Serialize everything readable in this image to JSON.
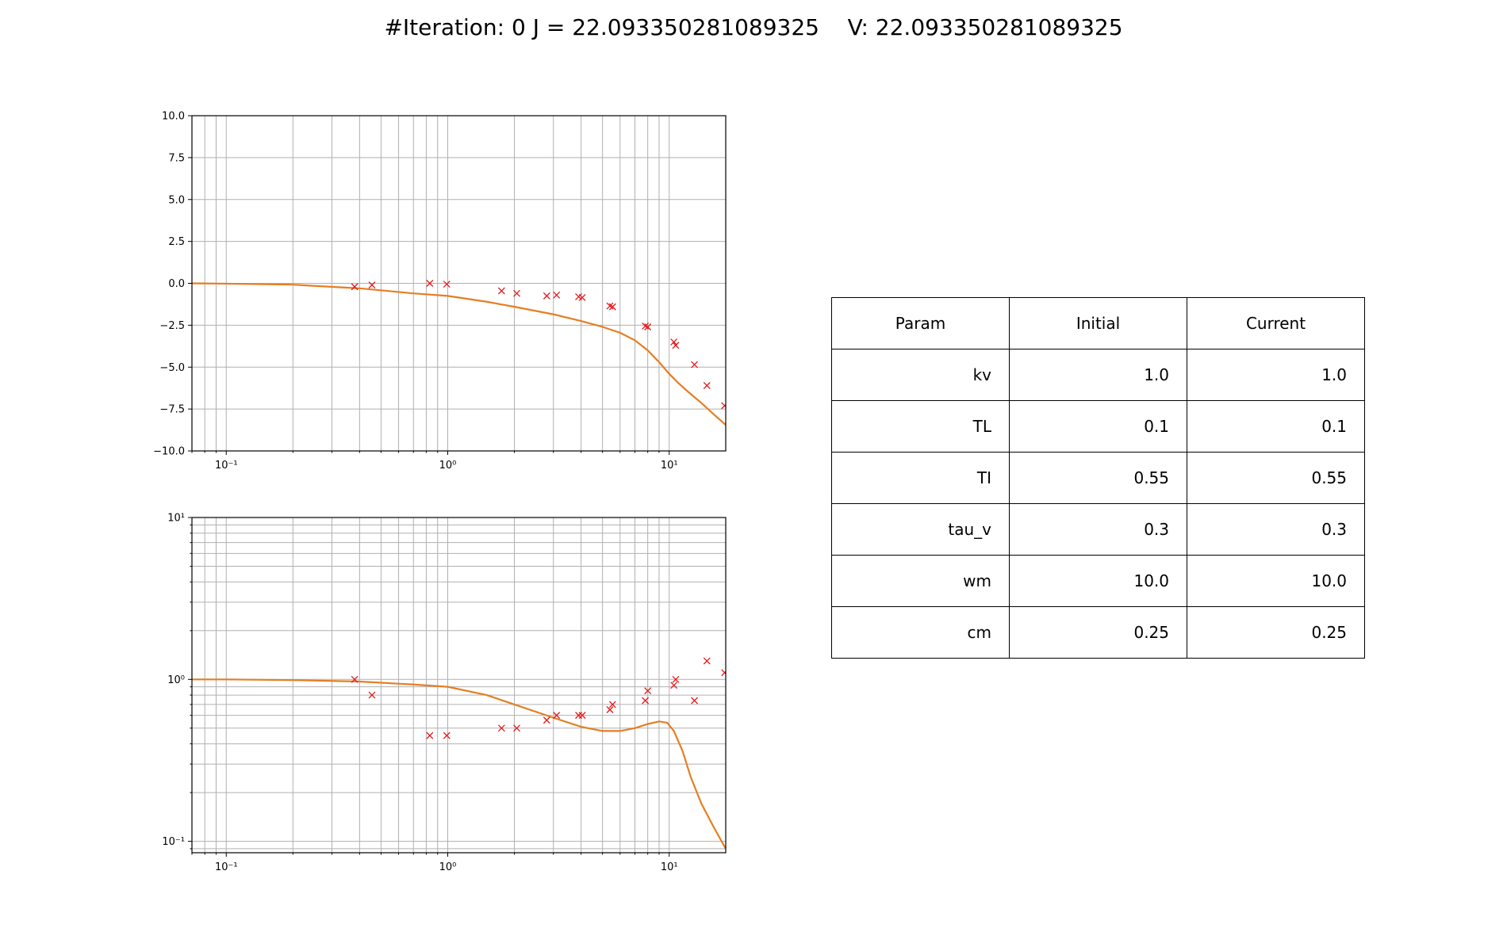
{
  "figure": {
    "title": "#Iteration: 0 J = 22.093350281089325    V: 22.093350281089325"
  },
  "colors": {
    "model_line": "#e67e22",
    "measurements": "#e41a1c",
    "grid": "#b0b0b0",
    "axes": "#000000"
  },
  "chart_data": [
    {
      "type": "line",
      "id": "top",
      "title": "",
      "xlabel": "",
      "ylabel": "",
      "xscale": "log",
      "yscale": "linear",
      "xlim": [
        0.07,
        18
      ],
      "ylim": [
        -10.0,
        10.0
      ],
      "grid": true,
      "xticks": [
        {
          "value": 0.1,
          "label": "10⁻¹"
        },
        {
          "value": 1,
          "label": "10⁰"
        },
        {
          "value": 10,
          "label": "10¹"
        }
      ],
      "yticks": [
        {
          "value": 10.0,
          "label": "10.0"
        },
        {
          "value": 7.5,
          "label": "7.5"
        },
        {
          "value": 5.0,
          "label": "5.0"
        },
        {
          "value": 2.5,
          "label": "2.5"
        },
        {
          "value": 0.0,
          "label": "0.0"
        },
        {
          "value": -2.5,
          "label": "−2.5"
        },
        {
          "value": -5.0,
          "label": "−5.0"
        },
        {
          "value": -7.5,
          "label": "−7.5"
        },
        {
          "value": -10.0,
          "label": "−10.0"
        }
      ],
      "series": [
        {
          "kind": "line",
          "x": [
            0.07,
            0.1,
            0.2,
            0.4,
            0.7,
            1.0,
            1.5,
            2.0,
            3.0,
            4.0,
            5.0,
            6.0,
            7.0,
            8.0,
            9.0,
            10.0,
            11.0,
            12.0,
            14.0,
            16.0,
            18.0
          ],
          "y": [
            0.0,
            -0.02,
            -0.08,
            -0.3,
            -0.6,
            -0.75,
            -1.1,
            -1.4,
            -1.85,
            -2.25,
            -2.6,
            -2.95,
            -3.4,
            -4.0,
            -4.7,
            -5.4,
            -5.95,
            -6.4,
            -7.15,
            -7.85,
            -8.45
          ]
        },
        {
          "kind": "scatter",
          "marker": "x",
          "x": [
            0.38,
            0.455,
            0.83,
            0.99,
            1.75,
            2.05,
            2.8,
            3.1,
            3.9,
            4.05,
            5.4,
            5.55,
            7.8,
            8.0,
            10.5,
            10.7,
            13.0,
            14.8,
            17.8
          ],
          "y": [
            -0.2,
            -0.1,
            0.0,
            -0.05,
            -0.45,
            -0.6,
            -0.75,
            -0.7,
            -0.8,
            -0.85,
            -1.35,
            -1.4,
            -2.55,
            -2.6,
            -3.5,
            -3.7,
            -4.85,
            -6.1,
            -7.3
          ]
        }
      ]
    },
    {
      "type": "line",
      "id": "bottom",
      "title": "",
      "xlabel": "",
      "ylabel": "",
      "xscale": "log",
      "yscale": "log",
      "xlim": [
        0.07,
        18
      ],
      "ylim": [
        0.085,
        10
      ],
      "grid": true,
      "xticks": [
        {
          "value": 0.1,
          "label": "10⁻¹"
        },
        {
          "value": 1,
          "label": "10⁰"
        },
        {
          "value": 10,
          "label": "10¹"
        }
      ],
      "yticks": [
        {
          "value": 10,
          "label": "10¹"
        },
        {
          "value": 1,
          "label": "10⁰"
        },
        {
          "value": 0.1,
          "label": "10⁻¹"
        }
      ],
      "series": [
        {
          "kind": "line",
          "x": [
            0.07,
            0.1,
            0.2,
            0.4,
            0.7,
            1.0,
            1.5,
            2.0,
            3.0,
            4.0,
            5.0,
            6.0,
            7.0,
            8.0,
            9.0,
            9.8,
            10.5,
            11.5,
            12.5,
            14.0,
            16.0,
            18.0
          ],
          "y": [
            1.0,
            1.0,
            0.99,
            0.97,
            0.93,
            0.9,
            0.8,
            0.7,
            0.58,
            0.51,
            0.48,
            0.48,
            0.5,
            0.53,
            0.55,
            0.54,
            0.48,
            0.36,
            0.25,
            0.17,
            0.12,
            0.09
          ]
        },
        {
          "kind": "scatter",
          "marker": "x",
          "x": [
            0.38,
            0.455,
            0.83,
            0.99,
            1.75,
            2.05,
            2.8,
            3.1,
            3.9,
            4.05,
            5.4,
            5.55,
            7.8,
            8.0,
            10.5,
            10.7,
            13.0,
            14.8,
            17.8
          ],
          "y": [
            1.0,
            0.8,
            0.45,
            0.45,
            0.5,
            0.5,
            0.56,
            0.6,
            0.6,
            0.6,
            0.65,
            0.7,
            0.74,
            0.85,
            0.92,
            1.0,
            0.74,
            1.3,
            1.1
          ]
        }
      ]
    }
  ],
  "table": {
    "columns": [
      "Param",
      "Initial",
      "Current"
    ],
    "rows": [
      [
        "kv",
        "1.0",
        "1.0"
      ],
      [
        "TL",
        "0.1",
        "0.1"
      ],
      [
        "TI",
        "0.55",
        "0.55"
      ],
      [
        "tau_v",
        "0.3",
        "0.3"
      ],
      [
        "wm",
        "10.0",
        "10.0"
      ],
      [
        "cm",
        "0.25",
        "0.25"
      ]
    ]
  }
}
